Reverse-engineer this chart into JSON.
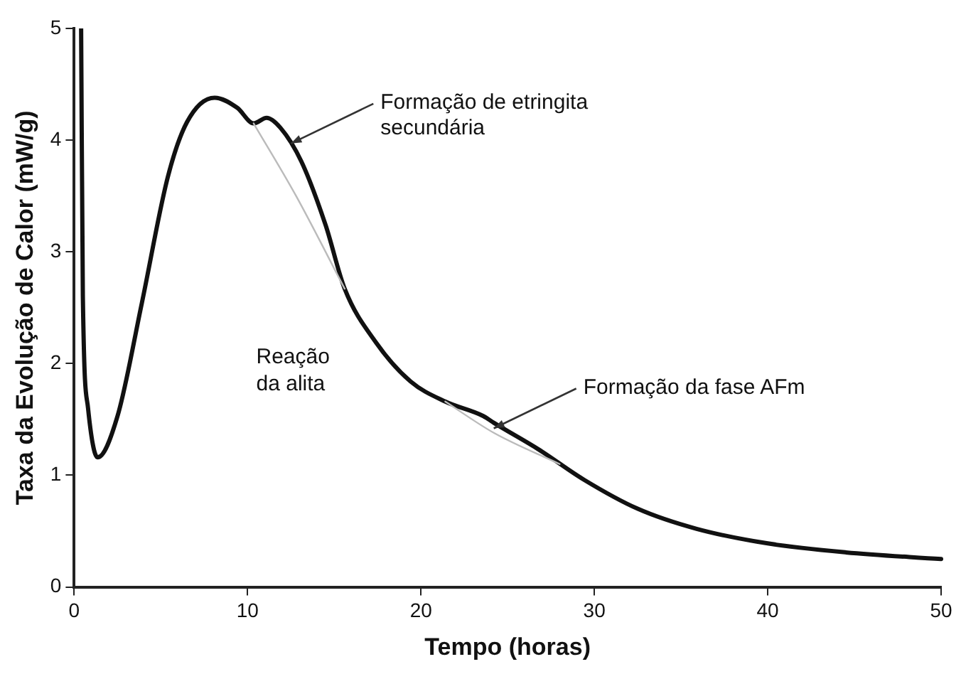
{
  "chart_data": {
    "type": "line",
    "xlabel": "Tempo (horas)",
    "ylabel": "Taxa da Evolução de Calor (mW/g)",
    "xlim": [
      0,
      50
    ],
    "xticks": [
      0,
      10,
      20,
      30,
      40,
      50
    ],
    "ylim": [
      0,
      5
    ],
    "yticks": [
      0,
      1,
      2,
      3,
      4,
      5
    ],
    "grid": false,
    "legend": false,
    "marker": "none",
    "line_style": "solid",
    "series": [
      {
        "color": "#111111",
        "x": [
          0.4,
          0.5,
          0.8,
          1.35,
          2.5,
          3.9,
          5.4,
          6.5,
          8.1,
          9.4,
          10.35,
          11.1,
          11.9,
          13.1,
          14.5,
          15.6,
          17.4,
          19.4,
          21.4,
          23.6,
          24.2,
          26.8,
          29.4,
          32.5,
          35.9,
          40,
          44.5,
          50
        ],
        "values": [
          5,
          2.6,
          1.6,
          1.16,
          1.53,
          2.54,
          3.67,
          4.16,
          4.38,
          4.29,
          4.15,
          4.2,
          4.11,
          3.81,
          3.24,
          2.67,
          2.19,
          1.84,
          1.66,
          1.53,
          1.47,
          1.23,
          0.96,
          0.7,
          0.52,
          0.39,
          0.31,
          0.25
        ]
      },
      {
        "color": "#bbbbbb",
        "x": [
          10.35,
          12.8,
          15.6,
          18,
          21.4,
          24.2,
          28
        ],
        "values": [
          4.15,
          3.5,
          2.67,
          null,
          1.66,
          1.38,
          1.1
        ]
      }
    ],
    "annotations": [
      {
        "text": "Formação de etringita secundária",
        "x": 12.5,
        "y": 3.97
      },
      "Reação da alita",
      {
        "text": "Formação da fase AFm",
        "x": 24.2,
        "y": 1.42
      }
    ]
  }
}
